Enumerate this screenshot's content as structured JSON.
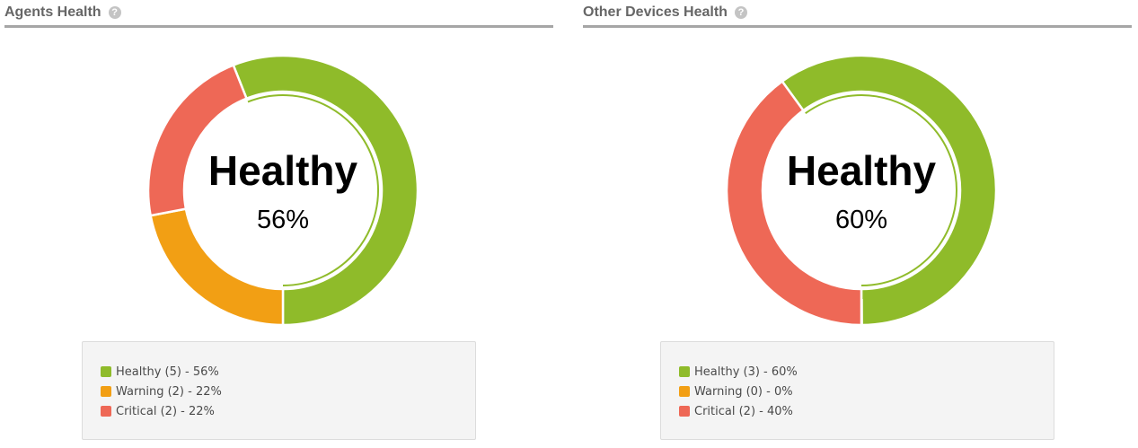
{
  "panels": [
    {
      "title": "Agents Health",
      "help_icon": "question-circle-icon",
      "center_label": "Healthy",
      "center_value": "56%",
      "legend": [
        {
          "text": "Healthy (5) - 56%"
        },
        {
          "text": "Warning (2) - 22%"
        },
        {
          "text": "Critical (2) - 22%"
        }
      ]
    },
    {
      "title": "Other Devices Health",
      "help_icon": "question-circle-icon",
      "center_label": "Healthy",
      "center_value": "60%",
      "legend": [
        {
          "text": "Healthy (3) - 60%"
        },
        {
          "text": "Warning (0) - 0%"
        },
        {
          "text": "Critical (2) - 40%"
        }
      ]
    }
  ],
  "colors": {
    "Healthy": "#8fbb2a",
    "Warning": "#f29f14",
    "Critical": "#ee6856"
  },
  "chart_data": [
    {
      "type": "pie",
      "title": "Agents Health",
      "categories": [
        "Healthy",
        "Warning",
        "Critical"
      ],
      "values": [
        56,
        22,
        22
      ],
      "counts": [
        5,
        2,
        2
      ],
      "center": {
        "label": "Healthy",
        "value": "56%"
      },
      "legend_position": "bottom"
    },
    {
      "type": "pie",
      "title": "Other Devices Health",
      "categories": [
        "Healthy",
        "Warning",
        "Critical"
      ],
      "values": [
        60,
        0,
        40
      ],
      "counts": [
        3,
        0,
        2
      ],
      "center": {
        "label": "Healthy",
        "value": "60%"
      },
      "legend_position": "bottom"
    }
  ]
}
